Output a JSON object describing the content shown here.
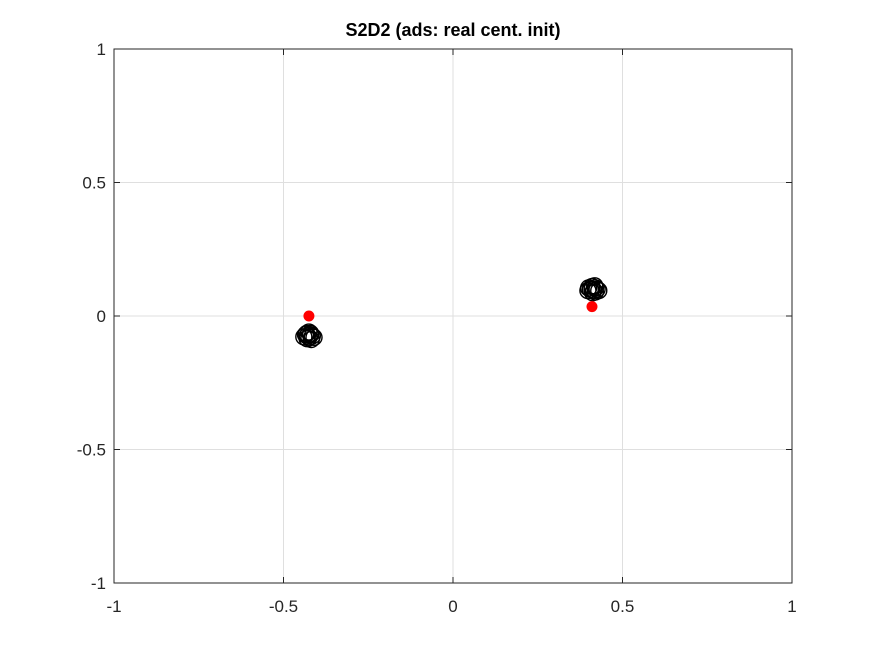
{
  "chart_data": {
    "type": "scatter",
    "title": "S2D2 (ads: real cent. init)",
    "xlabel": "",
    "ylabel": "",
    "xlim": [
      -1,
      1
    ],
    "ylim": [
      -1,
      1
    ],
    "xticks": [
      -1,
      -0.5,
      0,
      0.5,
      1
    ],
    "yticks": [
      -1,
      -0.5,
      0,
      0.5,
      1
    ],
    "xtick_labels": [
      "-1",
      "-0.5",
      "0",
      "0.5",
      "1"
    ],
    "ytick_labels": [
      "-1",
      "-0.5",
      "0",
      "0.5",
      "1"
    ],
    "grid": true,
    "series": [
      {
        "marker": "open-circle",
        "color": "#000000",
        "points": [
          {
            "x": -0.43,
            "y": -0.075
          },
          {
            "x": -0.42,
            "y": -0.07
          },
          {
            "x": -0.425,
            "y": -0.08
          },
          {
            "x": -0.415,
            "y": -0.075
          },
          {
            "x": -0.435,
            "y": -0.07
          },
          {
            "x": -0.42,
            "y": -0.065
          },
          {
            "x": -0.43,
            "y": -0.085
          },
          {
            "x": -0.41,
            "y": -0.08
          },
          {
            "x": -0.44,
            "y": -0.078
          },
          {
            "x": -0.425,
            "y": -0.06
          },
          {
            "x": -0.418,
            "y": -0.088
          },
          {
            "x": -0.432,
            "y": -0.066
          },
          {
            "x": 0.41,
            "y": 0.1
          },
          {
            "x": 0.42,
            "y": 0.105
          },
          {
            "x": 0.415,
            "y": 0.095
          },
          {
            "x": 0.405,
            "y": 0.1
          },
          {
            "x": 0.425,
            "y": 0.1
          },
          {
            "x": 0.41,
            "y": 0.11
          },
          {
            "x": 0.42,
            "y": 0.09
          },
          {
            "x": 0.4,
            "y": 0.105
          },
          {
            "x": 0.43,
            "y": 0.095
          },
          {
            "x": 0.412,
            "y": 0.087
          },
          {
            "x": 0.418,
            "y": 0.113
          },
          {
            "x": 0.398,
            "y": 0.095
          }
        ]
      },
      {
        "marker": "filled-circle",
        "color": "#ff0000",
        "points": [
          {
            "x": -0.425,
            "y": 0.0
          },
          {
            "x": 0.41,
            "y": 0.035
          }
        ]
      }
    ]
  }
}
